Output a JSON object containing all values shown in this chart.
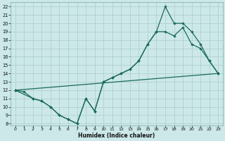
{
  "title": "",
  "xlabel": "Humidex (Indice chaleur)",
  "bg_color": "#cce8e8",
  "grid_color": "#aacccc",
  "line_color": "#1a6b5a",
  "xlim_min": -0.5,
  "xlim_max": 23.5,
  "ylim_min": 7.8,
  "ylim_max": 22.5,
  "xticks": [
    0,
    1,
    2,
    3,
    4,
    5,
    6,
    7,
    8,
    9,
    10,
    11,
    12,
    13,
    14,
    15,
    16,
    17,
    18,
    19,
    20,
    21,
    22,
    23
  ],
  "yticks": [
    8,
    9,
    10,
    11,
    12,
    13,
    14,
    15,
    16,
    17,
    18,
    19,
    20,
    21,
    22
  ],
  "line1_x": [
    0,
    1,
    2,
    3,
    4,
    5,
    6,
    7,
    8,
    9,
    10,
    11,
    12,
    13,
    14,
    15,
    16,
    17,
    18,
    19,
    20,
    21,
    22,
    23
  ],
  "line1_y": [
    12,
    11.8,
    11,
    10.7,
    10,
    9,
    8.5,
    8,
    11,
    9.5,
    13,
    13.5,
    14,
    14.5,
    15.5,
    17.5,
    19,
    19,
    18.5,
    19.5,
    17.5,
    17,
    15.5,
    14
  ],
  "line2_x": [
    0,
    2,
    3,
    4,
    5,
    6,
    7,
    8,
    9,
    10,
    11,
    12,
    13,
    14,
    15,
    16,
    17,
    18,
    19,
    20,
    21,
    22,
    23
  ],
  "line2_y": [
    12,
    11,
    10.7,
    10,
    9,
    8.5,
    8,
    11,
    9.5,
    13,
    13.5,
    14,
    14.5,
    15.5,
    17.5,
    19,
    22,
    20,
    20,
    19,
    17.5,
    15.5,
    14
  ],
  "line3_x": [
    0,
    23
  ],
  "line3_y": [
    12,
    14
  ]
}
